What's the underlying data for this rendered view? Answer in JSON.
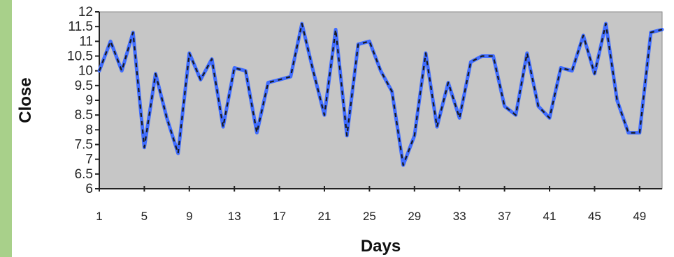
{
  "colors": {
    "left_band": "#a8d08a",
    "plot_background": "#c6c6c6",
    "line": "#3f6cff",
    "line_dash": "#1a1a1a",
    "axis": "#222222"
  },
  "chart_data": {
    "type": "line",
    "title": "",
    "xlabel": "Days",
    "ylabel": "Close",
    "xlim": [
      1,
      51
    ],
    "ylim": [
      6,
      12
    ],
    "x_ticks": [
      1,
      5,
      9,
      13,
      17,
      21,
      25,
      29,
      33,
      37,
      41,
      45,
      49
    ],
    "y_ticks": [
      6,
      6.5,
      7,
      7.5,
      8,
      8.5,
      9,
      9.5,
      10,
      10.5,
      11,
      11.5,
      12
    ],
    "grid": false,
    "legend": "none",
    "x": [
      1,
      2,
      3,
      4,
      5,
      6,
      7,
      8,
      9,
      10,
      11,
      12,
      13,
      14,
      15,
      16,
      17,
      18,
      19,
      20,
      21,
      22,
      23,
      24,
      25,
      26,
      27,
      28,
      29,
      30,
      31,
      32,
      33,
      34,
      35,
      36,
      37,
      38,
      39,
      40,
      41,
      42,
      43,
      44,
      45,
      46,
      47,
      48,
      49,
      50,
      51
    ],
    "series": [
      {
        "values": [
          10.0,
          11.0,
          10.0,
          11.3,
          7.4,
          9.9,
          8.4,
          7.2,
          10.6,
          9.7,
          10.4,
          8.1,
          10.1,
          10.0,
          7.9,
          9.6,
          9.7,
          9.8,
          11.6,
          10.0,
          8.5,
          11.4,
          7.8,
          10.9,
          11.0,
          10.0,
          9.3,
          6.8,
          7.8,
          10.6,
          8.1,
          9.6,
          8.4,
          10.3,
          10.5,
          10.5,
          8.8,
          8.5,
          10.6,
          8.8,
          8.4,
          10.1,
          10.0,
          11.2,
          9.9,
          11.6,
          9.0,
          7.9,
          7.9,
          11.3,
          11.4
        ]
      }
    ]
  }
}
